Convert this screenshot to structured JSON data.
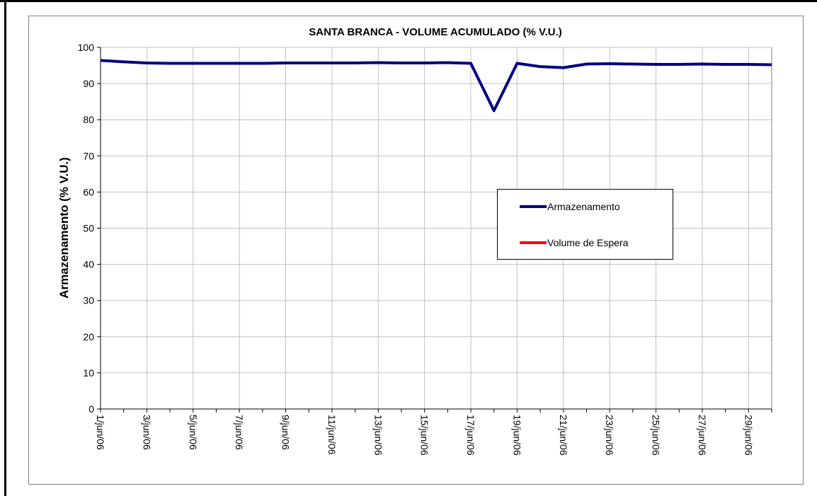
{
  "chart_data": {
    "type": "line",
    "title": "SANTA BRANCA - VOLUME ACUMULADO (% V.U.)",
    "y_label": "Armazenamento (% V.U.)",
    "categories": [
      "1/jun/06",
      null,
      "3/jun/06",
      null,
      "5/jun/06",
      null,
      "7/jun/06",
      null,
      "9/jun/06",
      null,
      "11/jun/06",
      null,
      "13/jun/06",
      null,
      "15/jun/06",
      null,
      "17/jun/06",
      null,
      "19/jun/06",
      null,
      "21/jun/06",
      null,
      "23/jun/06",
      null,
      "25/jun/06",
      null,
      "27/jun/06",
      null,
      "29/jun/06",
      null
    ],
    "series": [
      {
        "name": "Armazenamento",
        "color": "#000080",
        "values": [
          96.4,
          96.0,
          95.7,
          95.6,
          95.6,
          95.6,
          95.6,
          95.6,
          95.7,
          95.7,
          95.7,
          95.7,
          95.8,
          95.7,
          95.7,
          95.8,
          95.6,
          82.5,
          95.6,
          94.7,
          94.4,
          95.4,
          95.5,
          95.4,
          95.3,
          95.3,
          95.4,
          95.3,
          95.3,
          95.2
        ]
      },
      {
        "name": "Volume de Espera",
        "color": "#ff0000",
        "values": [
          null,
          null,
          null,
          null,
          null,
          null,
          null,
          null,
          null,
          null,
          null,
          null,
          null,
          null,
          null,
          null,
          null,
          null,
          null,
          null,
          null,
          null,
          null,
          null,
          null,
          null,
          null,
          null,
          null,
          null
        ]
      }
    ],
    "ylim": [
      0,
      100
    ],
    "yticks": [
      0,
      10,
      20,
      30,
      40,
      50,
      60,
      70,
      80,
      90,
      100
    ],
    "grid": true
  }
}
